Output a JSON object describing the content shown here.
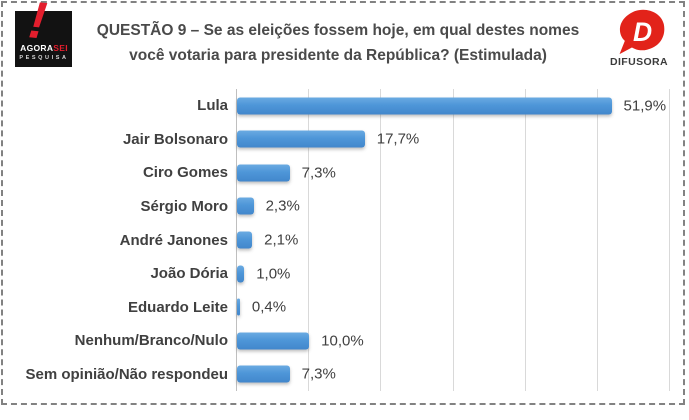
{
  "header": {
    "title_line1": "QUESTÃO 9 – Se as eleições fossem hoje, em qual destes nomes",
    "title_line2": "você votaria para presidente da República? (Estimulada)",
    "logo_left": {
      "exclamation": "!",
      "brand_part1": "AGORA",
      "brand_part2": "SEI",
      "subtitle": "PESQUISA",
      "bg_color": "#121212",
      "accent_color": "#e31e2d"
    },
    "logo_right": {
      "name": "DIFUSORA",
      "letter": "D",
      "accent_color": "#e2231a",
      "text_color": "#3b3b3b"
    }
  },
  "chart_data": {
    "type": "bar",
    "orientation": "horizontal",
    "title": "QUESTÃO 9 – Se as eleições fossem hoje, em qual destes nomes você votaria para presidente da República? (Estimulada)",
    "categories": [
      "Lula",
      "Jair Bolsonaro",
      "Ciro Gomes",
      "Sérgio Moro",
      "André Janones",
      "João Dória",
      "Eduardo Leite",
      "Nenhum/Branco/Nulo",
      "Sem opinião/Não respondeu"
    ],
    "values": [
      51.9,
      17.7,
      7.3,
      2.3,
      2.1,
      1.0,
      0.4,
      10.0,
      7.3
    ],
    "value_labels": [
      "51,9%",
      "17,7%",
      "7,3%",
      "2,3%",
      "2,1%",
      "1,0%",
      "0,4%",
      "10,0%",
      "7,3%"
    ],
    "xlabel": "",
    "ylabel": "",
    "xlim": [
      0,
      60
    ],
    "grid_step": 10,
    "grid": true,
    "legend": false,
    "bar_color": "#4e96d8"
  }
}
